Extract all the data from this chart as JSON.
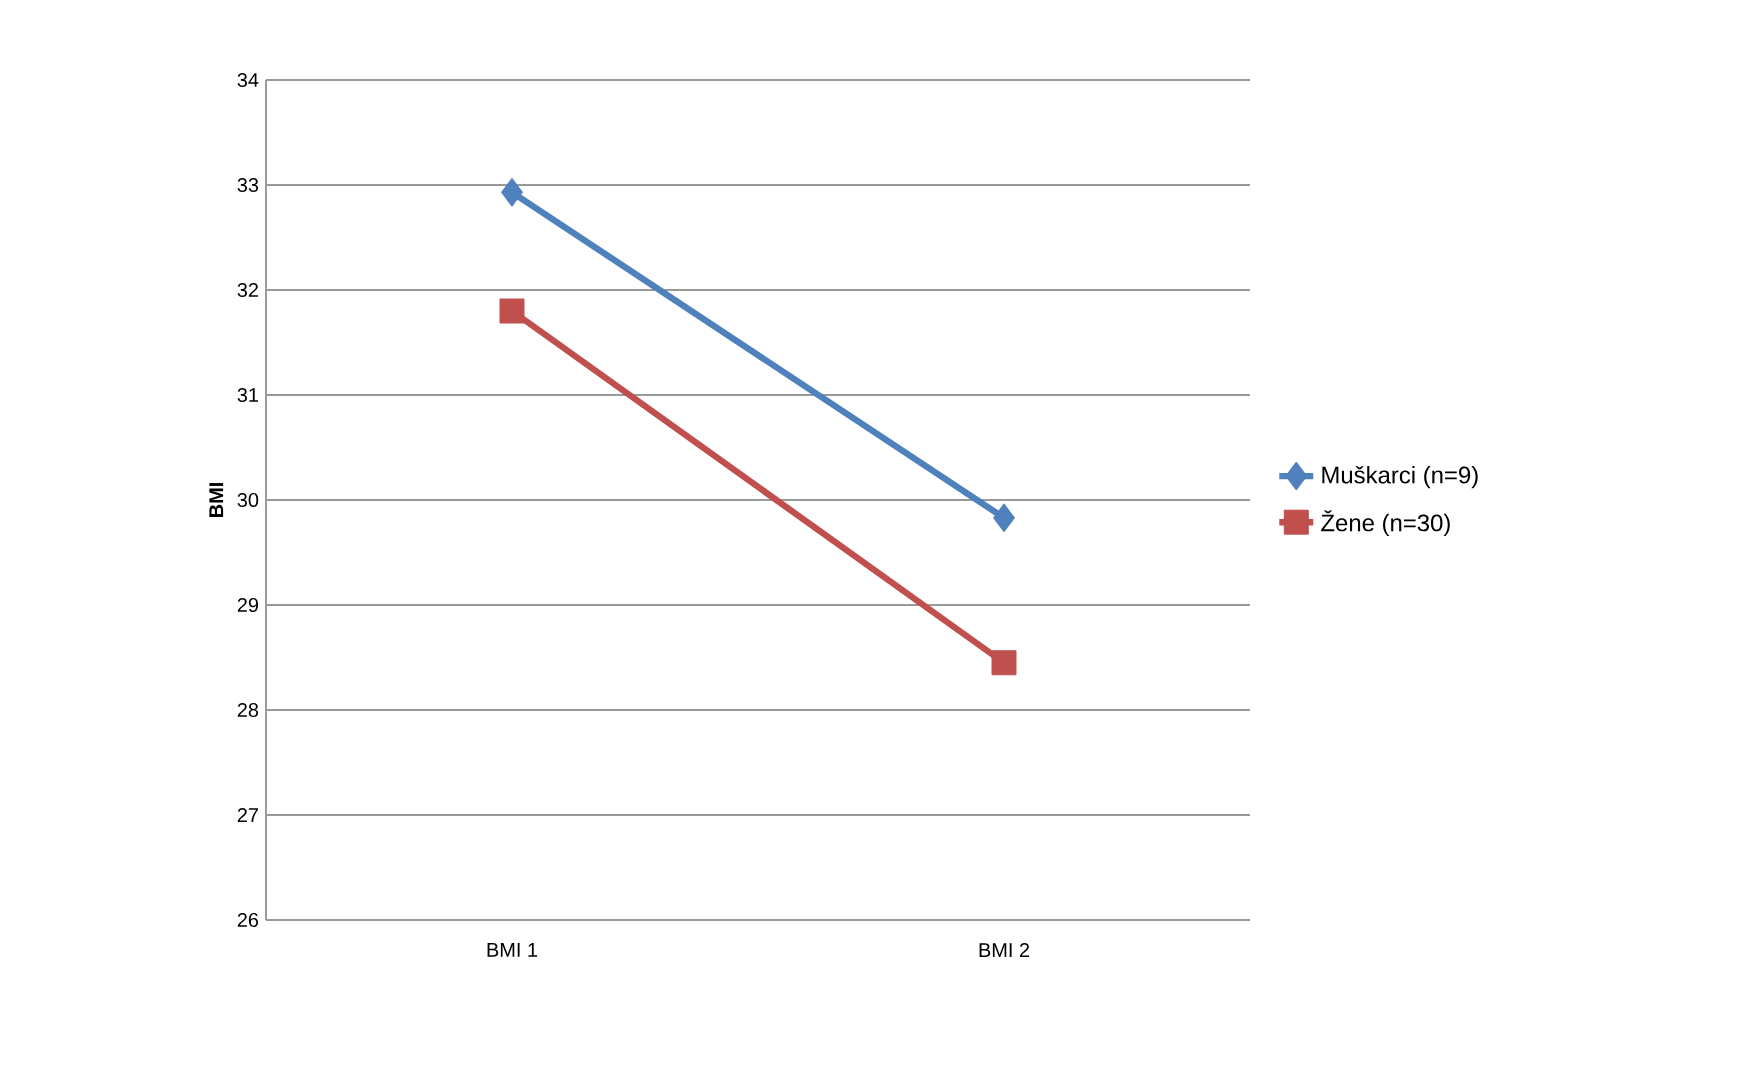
{
  "chart_data": {
    "type": "line",
    "categories": [
      "BMI 1",
      "BMI 2"
    ],
    "ylabel": "BMI",
    "ylim": [
      26,
      34
    ],
    "yticks": [
      26,
      27,
      28,
      29,
      30,
      31,
      32,
      33,
      34
    ],
    "grid": "y",
    "legend": "right",
    "series": [
      {
        "name": "Muškarci (n=9)",
        "color": "#4f81bd",
        "marker": "diamond",
        "values": [
          32.93,
          29.83
        ]
      },
      {
        "name": "Žene (n=30)",
        "color": "#c0504d",
        "marker": "square",
        "values": [
          31.8,
          28.45
        ]
      }
    ]
  }
}
